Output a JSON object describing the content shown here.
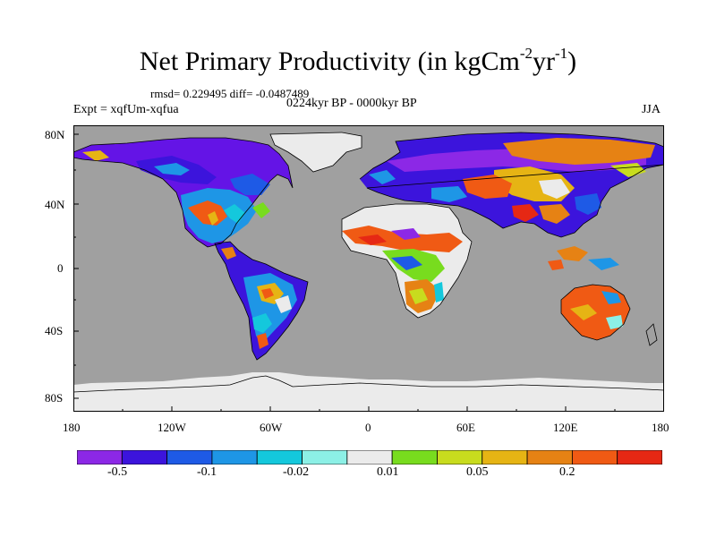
{
  "title": {
    "main": "Net Primary Productivity (in kgCm",
    "exp1": "-2",
    "mid": "yr",
    "exp2": "-1",
    "end": ")"
  },
  "stats": "rmsd= 0.229495 diff= -0.0487489",
  "period": "0224kyr BP - 0000kyr BP",
  "experiment": "Expt = xqfUm-xqfua",
  "season": "JJA",
  "map": {
    "ocean_color": "#a0a0a0",
    "ice_color": "#ebebeb",
    "lat_labels": [
      "80N",
      "40N",
      "0",
      "40S",
      "80S"
    ],
    "lon_labels": [
      "180",
      "120W",
      "60W",
      "0",
      "60E",
      "120E",
      "180"
    ]
  },
  "colorbar": {
    "colors": [
      "#8c28e6",
      "#3c14dc",
      "#1e5ae6",
      "#1e96e6",
      "#14c8dc",
      "#8cf0e6",
      "#ebebeb",
      "#78dc1e",
      "#c8dc1e",
      "#e6b414",
      "#e68214",
      "#f05a14",
      "#e62814"
    ],
    "labels": [
      "-0.5",
      "-0.1",
      "-0.02",
      "0.01",
      "0.05",
      "0.2"
    ]
  }
}
